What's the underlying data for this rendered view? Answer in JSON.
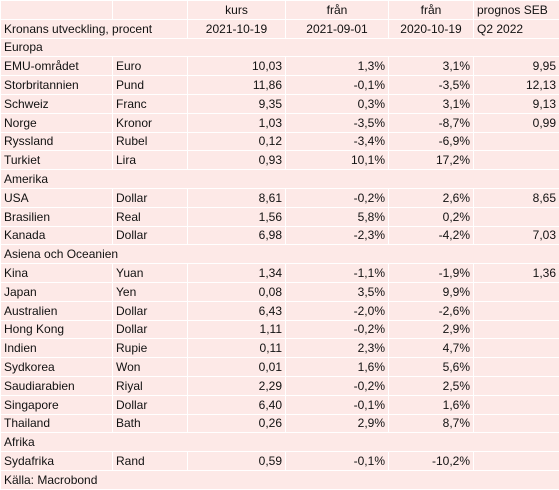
{
  "header": {
    "row1": [
      "",
      "",
      "kurs",
      "från",
      "från",
      "prognos SEB"
    ],
    "row2": [
      "Kronans utveckling, procent",
      "",
      "2021-10-19",
      "2021-09-01",
      "2020-10-19",
      "Q2 2022"
    ]
  },
  "rows": [
    {
      "type": "section",
      "label": "Europa"
    },
    {
      "type": "data",
      "country": "EMU-området",
      "currency": "Euro",
      "kurs": "10,03",
      "sep": "1,3%",
      "year": "3,1%",
      "forecast": "9,95"
    },
    {
      "type": "data",
      "country": "Storbritannien",
      "currency": "Pund",
      "kurs": "11,86",
      "sep": "-0,1%",
      "year": "-3,5%",
      "forecast": "12,13"
    },
    {
      "type": "data",
      "country": "Schweiz",
      "currency": "Franc",
      "kurs": "9,35",
      "sep": "0,3%",
      "year": "3,1%",
      "forecast": "9,13"
    },
    {
      "type": "data",
      "country": "Norge",
      "currency": "Kronor",
      "kurs": "1,03",
      "sep": "-3,5%",
      "year": "-8,7%",
      "forecast": "0,99"
    },
    {
      "type": "data",
      "country": "Ryssland",
      "currency": "Rubel",
      "kurs": "0,12",
      "sep": "-3,4%",
      "year": "-6,9%",
      "forecast": ""
    },
    {
      "type": "data",
      "country": "Turkiet",
      "currency": "Lira",
      "kurs": "0,93",
      "sep": "10,1%",
      "year": "17,2%",
      "forecast": ""
    },
    {
      "type": "section",
      "label": "Amerika"
    },
    {
      "type": "data",
      "country": "USA",
      "currency": "Dollar",
      "kurs": "8,61",
      "sep": "-0,2%",
      "year": "2,6%",
      "forecast": "8,65"
    },
    {
      "type": "data",
      "country": "Brasilien",
      "currency": "Real",
      "kurs": "1,56",
      "sep": "5,8%",
      "year": "0,2%",
      "forecast": ""
    },
    {
      "type": "data",
      "country": "Kanada",
      "currency": "Dollar",
      "kurs": "6,98",
      "sep": "-2,3%",
      "year": "-4,2%",
      "forecast": "7,03"
    },
    {
      "type": "section",
      "label": "Asiena och Oceanien"
    },
    {
      "type": "data",
      "country": "Kina",
      "currency": "Yuan",
      "kurs": "1,34",
      "sep": "-1,1%",
      "year": "-1,9%",
      "forecast": "1,36"
    },
    {
      "type": "data",
      "country": "Japan",
      "currency": "Yen",
      "kurs": "0,08",
      "sep": "3,5%",
      "year": "9,9%",
      "forecast": ""
    },
    {
      "type": "data",
      "country": "Australien",
      "currency": "Dollar",
      "kurs": "6,43",
      "sep": "-2,0%",
      "year": "-2,6%",
      "forecast": ""
    },
    {
      "type": "data",
      "country": "Hong Kong",
      "currency": "Dollar",
      "kurs": "1,11",
      "sep": "-0,2%",
      "year": "2,9%",
      "forecast": ""
    },
    {
      "type": "data",
      "country": "Indien",
      "currency": "Rupie",
      "kurs": "0,11",
      "sep": "2,3%",
      "year": "4,7%",
      "forecast": ""
    },
    {
      "type": "data",
      "country": "Sydkorea",
      "currency": "Won",
      "kurs": "0,01",
      "sep": "1,6%",
      "year": "5,6%",
      "forecast": ""
    },
    {
      "type": "data",
      "country": "Saudiarabien",
      "currency": "Riyal",
      "kurs": "2,29",
      "sep": "-0,2%",
      "year": "2,5%",
      "forecast": ""
    },
    {
      "type": "data",
      "country": "Singapore",
      "currency": "Dollar",
      "kurs": "6,40",
      "sep": "-0,1%",
      "year": "1,6%",
      "forecast": ""
    },
    {
      "type": "data",
      "country": "Thailand",
      "currency": "Bath",
      "kurs": "0,26",
      "sep": "2,9%",
      "year": "8,7%",
      "forecast": ""
    },
    {
      "type": "section",
      "label": "Afrika"
    },
    {
      "type": "data",
      "country": "Sydafrika",
      "currency": "Rand",
      "kurs": "0,59",
      "sep": "-0,1%",
      "year": "-10,2%",
      "forecast": ""
    },
    {
      "type": "section",
      "label": "Källa: Macrobond"
    }
  ]
}
